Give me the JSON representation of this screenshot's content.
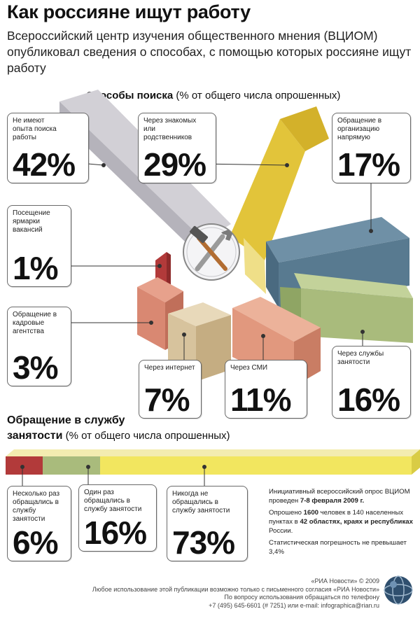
{
  "title": "Как россияне ищут работу",
  "subtitle": "Всероссийский центр изучения общественного мнения (ВЦИОМ) опубликовал сведения о способах, с помощью которых россияне ищут работу",
  "section1": {
    "bold": "Способы поиска",
    "rest": " (% от общего числа опрошенных)"
  },
  "section2": {
    "bold1": "Обращение в службу",
    "bold2": "занятости",
    "rest": " (% от общего числа опрошенных)"
  },
  "icon": "hammer-and-wrench-icon",
  "colors": {
    "gray": "#c9c6cd",
    "yellow": "#e6cb3c",
    "blue": "#587a90",
    "green": "#a9bb7c",
    "red": "#b23a3a",
    "salmon": "#d98872",
    "tan": "#d7c39d",
    "peach": "#e1987e"
  },
  "chart_data": [
    {
      "type": "bar",
      "title": "Способы поиска",
      "subtitle": "(% от общего числа опрошенных)",
      "categories": [
        "Не имеют опыта поиска работы",
        "Через знакомых или родственников",
        "Обращение в организацию напрямую",
        "Посещение ярмарки вакансий",
        "Обращение в кадровые агентства",
        "Через интернет",
        "Через СМИ",
        "Через службы занятости"
      ],
      "values": [
        42,
        29,
        17,
        1,
        3,
        7,
        11,
        16
      ],
      "labels": [
        "42%",
        "29%",
        "17%",
        "1%",
        "3%",
        "7%",
        "11%",
        "16%"
      ]
    },
    {
      "type": "bar",
      "title": "Обращение в службу занятости",
      "subtitle": "(% от общего числа опрошенных)",
      "categories": [
        "Несколько раз обращались в службу занятости",
        "Один раз обращались в службу занятости",
        "Никогда не обращались в службу занятости"
      ],
      "values": [
        6,
        16,
        73
      ],
      "labels": [
        "6%",
        "16%",
        "73%"
      ]
    }
  ],
  "card_texts": [
    "Не имеют опыта поиска работы",
    "Через знакомых или родственников",
    "Обращение в организацию напрямую",
    "Посещение ярмарки вакансий",
    "Обращение в кадровые агентства",
    "Через интернет",
    "Через СМИ",
    "Через службы занятости"
  ],
  "card2_texts": [
    "Несколько раз обращались в службу занятости",
    "Один раз обращались в службу занятости",
    "Никогда не обращались в службу занятости"
  ],
  "note": {
    "p1a": "Инициативный всероссийский опрос ВЦИОМ проведен ",
    "p1b": "7-8 февраля 2009 г.",
    "p2a": "Опрошено ",
    "p2b": "1600",
    "p2c": " человек в 140 населенных пунктах в ",
    "p2d": "42 областях, краях и республиках",
    "p2e": " России.",
    "p3": "Статистическая погрешность не превышает 3,4%"
  },
  "footer": {
    "line1": "«РИА Новости» © 2009",
    "line2": "Любое использование этой публикации возможно только с письменного согласия «РИА Новости»",
    "line3": "По вопросу использования обращаться по телефону",
    "line4": "+7 (495) 645-6601 (# 7251) или e-mail: infographica@rian.ru"
  }
}
